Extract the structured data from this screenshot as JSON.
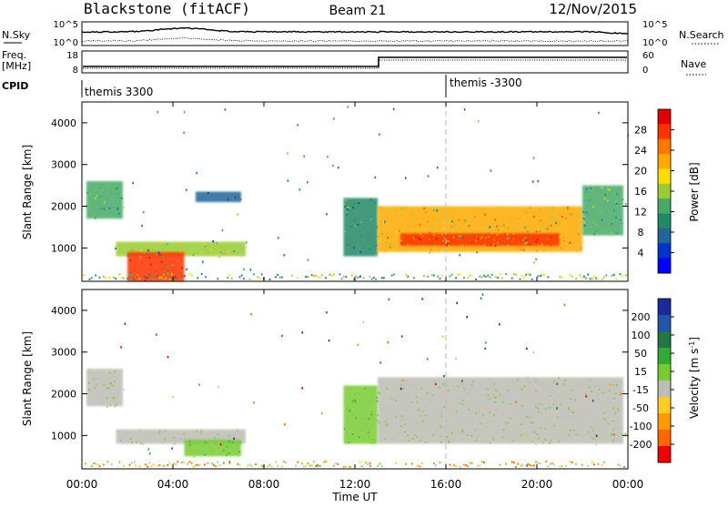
{
  "header": {
    "station": "Blackstone (fitACF)",
    "beam": "Beam 21",
    "date": "12/Nov/2015"
  },
  "panels": {
    "nsky": {
      "left_label": "N.Sky",
      "left_ticks": [
        "10^5",
        "10^0"
      ],
      "right_label": "N.Search",
      "right_ticks": [
        "10^5",
        "10^0"
      ]
    },
    "freq": {
      "left_label_1": "Freq.",
      "left_label_2": "[MHz]",
      "left_ticks": [
        "18",
        "8"
      ],
      "right_label": "Nave",
      "right_ticks": [
        "60",
        "0"
      ]
    },
    "cpid": {
      "label": "CPID",
      "modes": [
        "themis 3300",
        "themis -3300"
      ]
    }
  },
  "colorbars": {
    "power": {
      "label": "Power [dB]",
      "ticks": [
        "28",
        "24",
        "20",
        "16",
        "12",
        "8",
        "4"
      ],
      "colors": [
        "#e00000",
        "#ff3300",
        "#ff7700",
        "#ffaa00",
        "#ffdd00",
        "#99cc33",
        "#44aa66",
        "#228866",
        "#226699",
        "#0033cc",
        "#0000ff"
      ]
    },
    "velocity": {
      "label": "Velocity [m s",
      "label_sup": "-1",
      "label_end": "]",
      "ticks": [
        "200",
        "100",
        "50",
        "15",
        "-15",
        "-50",
        "-100",
        "-200"
      ],
      "colors": [
        "#1a2a9c",
        "#2255aa",
        "#227744",
        "#33aa33",
        "#77cc33",
        "#bdbdb5",
        "#ffcc22",
        "#ff9900",
        "#ff6600",
        "#ee0000"
      ]
    }
  },
  "chart_data": [
    {
      "type": "heatmap",
      "title": "Power",
      "xlabel": "Time UT",
      "ylabel": "Slant Range [km]",
      "x_ticks": [
        "00:00",
        "04:00",
        "08:00",
        "12:00",
        "16:00",
        "20:00",
        "00:00"
      ],
      "y_ticks": [
        1000,
        2000,
        3000,
        4000
      ],
      "ylim": [
        200,
        4500
      ],
      "zlim": [
        0,
        30
      ],
      "zunit": "dB",
      "features": [
        {
          "t_start": 0.2,
          "t_end": 1.8,
          "r_low": 1700,
          "r_high": 2600,
          "power": 12
        },
        {
          "t_start": 1.5,
          "t_end": 7.2,
          "r_low": 800,
          "r_high": 1150,
          "power": 16
        },
        {
          "t_start": 2.0,
          "t_end": 4.5,
          "r_low": 200,
          "r_high": 900,
          "power": 26
        },
        {
          "t_start": 5.0,
          "t_end": 7.0,
          "r_low": 2100,
          "r_high": 2350,
          "power": 6
        },
        {
          "t_start": 11.5,
          "t_end": 13.0,
          "r_low": 800,
          "r_high": 2200,
          "power": 10
        },
        {
          "t_start": 13.0,
          "t_end": 22.0,
          "r_low": 900,
          "r_high": 2000,
          "power": 20
        },
        {
          "t_start": 14.0,
          "t_end": 21.0,
          "r_low": 1050,
          "r_high": 1350,
          "power": 28
        },
        {
          "t_start": 22.0,
          "t_end": 23.8,
          "r_low": 1300,
          "r_high": 2500,
          "power": 12
        }
      ]
    },
    {
      "type": "heatmap",
      "title": "Velocity",
      "xlabel": "Time UT",
      "ylabel": "Slant Range [km]",
      "x_ticks": [
        "00:00",
        "04:00",
        "08:00",
        "12:00",
        "16:00",
        "20:00",
        "00:00"
      ],
      "y_ticks": [
        1000,
        2000,
        3000,
        4000
      ],
      "ylim": [
        200,
        4500
      ],
      "zlim": [
        -200,
        200
      ],
      "zunit": "m s-1",
      "features": [
        {
          "t_start": 0.2,
          "t_end": 1.8,
          "r_low": 1700,
          "r_high": 2600,
          "velocity": 0
        },
        {
          "t_start": 1.5,
          "t_end": 7.2,
          "r_low": 800,
          "r_high": 1150,
          "velocity": 0
        },
        {
          "t_start": 4.5,
          "t_end": 7.0,
          "r_low": 500,
          "r_high": 900,
          "velocity": 40
        },
        {
          "t_start": 11.5,
          "t_end": 13.0,
          "r_low": 800,
          "r_high": 2200,
          "velocity": 30
        },
        {
          "t_start": 13.0,
          "t_end": 23.8,
          "r_low": 800,
          "r_high": 2400,
          "velocity": 0
        }
      ]
    }
  ]
}
